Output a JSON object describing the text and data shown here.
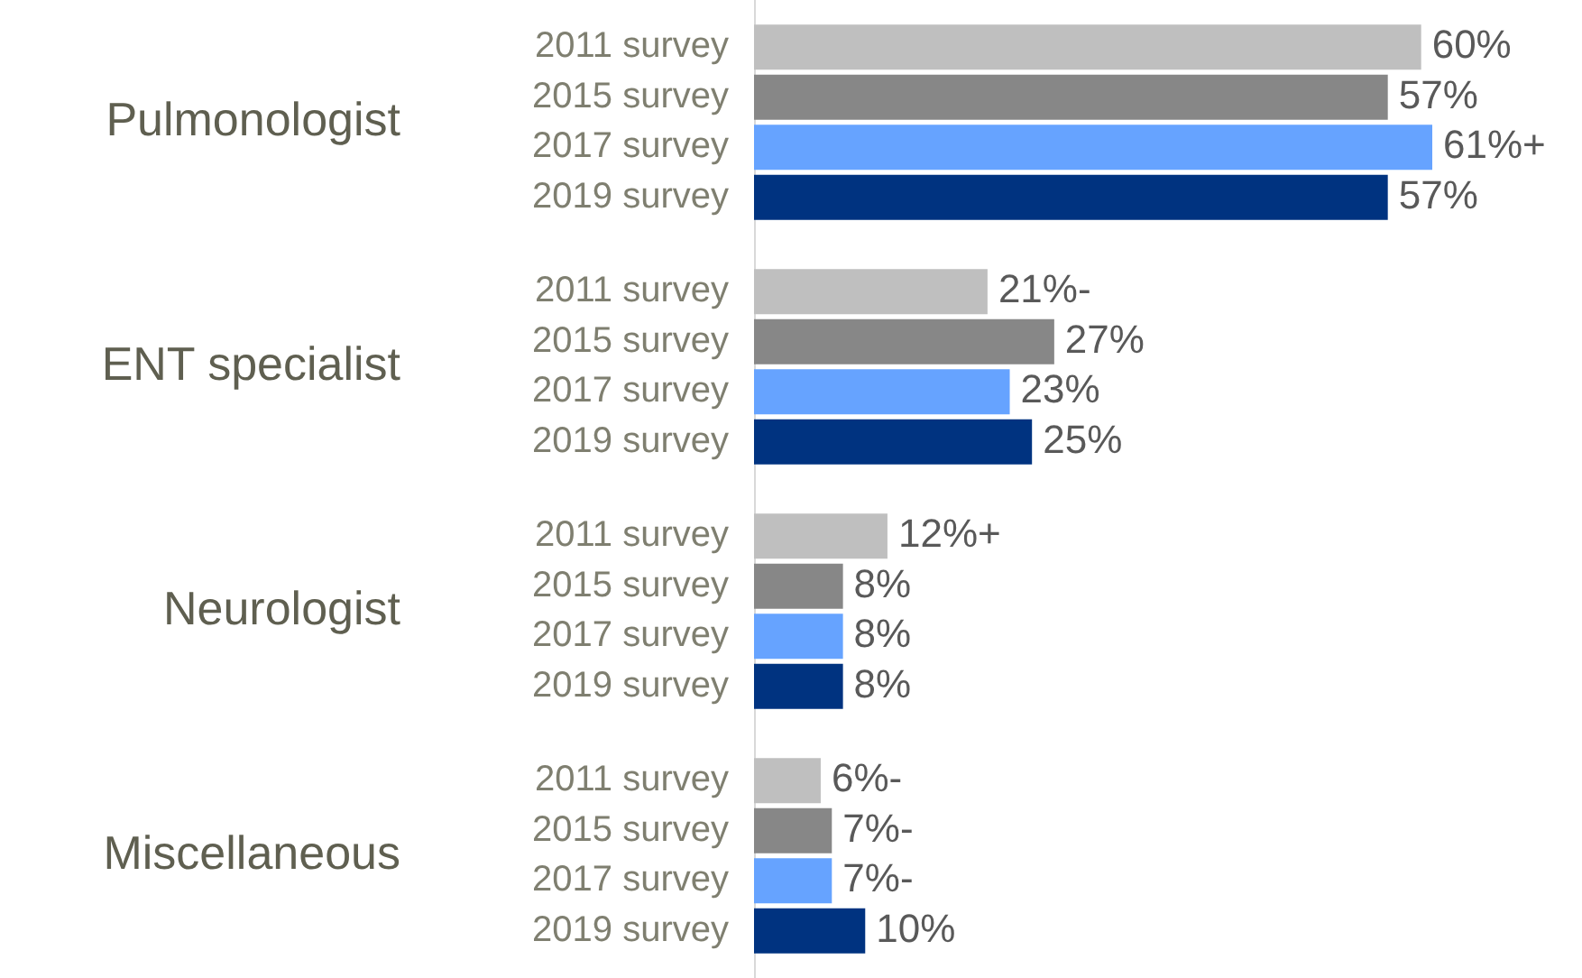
{
  "chart_data": {
    "type": "bar",
    "orientation": "horizontal",
    "categories": [
      "Pulmonologist",
      "ENT specialist",
      "Neurologist",
      "Miscellaneous"
    ],
    "series": [
      {
        "name": "2011 survey",
        "color": "#bfbfbf",
        "values": [
          60,
          21,
          12,
          6
        ],
        "value_labels": [
          "60%",
          "21%-",
          "12%+",
          "6%-"
        ]
      },
      {
        "name": "2015 survey",
        "color": "#878787",
        "values": [
          57,
          27,
          8,
          7
        ],
        "value_labels": [
          "57%",
          "27%",
          "8%",
          "7%-"
        ]
      },
      {
        "name": "2017 survey",
        "color": "#66a3ff",
        "values": [
          61,
          23,
          8,
          7
        ],
        "value_labels": [
          "61%+",
          "23%",
          "8%",
          "7%-"
        ]
      },
      {
        "name": "2019 survey",
        "color": "#003380",
        "values": [
          57,
          25,
          8,
          10
        ],
        "value_labels": [
          "57%",
          "25%",
          "8%",
          "10%"
        ]
      }
    ],
    "legend": false,
    "grid": false
  }
}
